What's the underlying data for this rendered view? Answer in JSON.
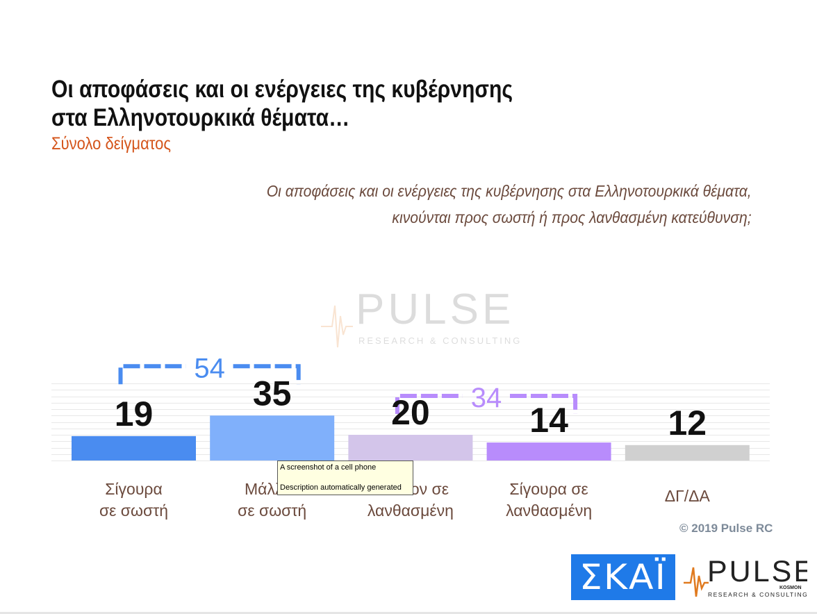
{
  "header": {
    "title_line1": "Οι αποφάσεις και οι ενέργειες της κυβέρνησης",
    "title_line2": "στα Ελληνοτουρκικά θέματα…",
    "subtitle": "Σύνολο δείγματος"
  },
  "question": {
    "line1": "Οι αποφάσεις και οι ενέργειες της κυβέρνησης στα Ελληνοτουρκικά θέματα,",
    "line2": "κινούνται προς σωστή ή προς λανθασμένη κατεύθυνση;"
  },
  "chart_data": {
    "type": "bar",
    "categories": [
      [
        "Σίγουρα",
        "σε σωστή"
      ],
      [
        "Μάλλον",
        "σε σωστή"
      ],
      [
        "Μάλλον σε",
        "λανθασμένη"
      ],
      [
        "Σίγουρα σε",
        "λανθασμένη"
      ],
      [
        "ΔΓ/ΔΑ"
      ]
    ],
    "values": [
      19,
      35,
      20,
      14,
      12
    ],
    "colors": [
      "#4a8cf0",
      "#80b0fb",
      "#d3c5ea",
      "#b88cfc",
      "#d0d0d0"
    ],
    "ylim": [
      0,
      60
    ],
    "grid": true,
    "groups": [
      {
        "value": "54",
        "from": 0,
        "to": 1,
        "color": "#4a8cf0"
      },
      {
        "value": "34",
        "from": 2,
        "to": 3,
        "color": "#b88cfc"
      }
    ]
  },
  "tooltip": {
    "line1": "A screenshot of a cell phone",
    "line2": "Description automatically generated"
  },
  "footer": {
    "copyright": "© 2019 Pulse RC",
    "skai_logo": "ΣΚΑΪ",
    "pulse_logo": {
      "name": "PULSE",
      "small": "KOSMON",
      "tagline": "RESEARCH & CONSULTING"
    }
  },
  "watermark": {
    "name": "PULSE",
    "tagline": "RESEARCH & CONSULTING"
  }
}
